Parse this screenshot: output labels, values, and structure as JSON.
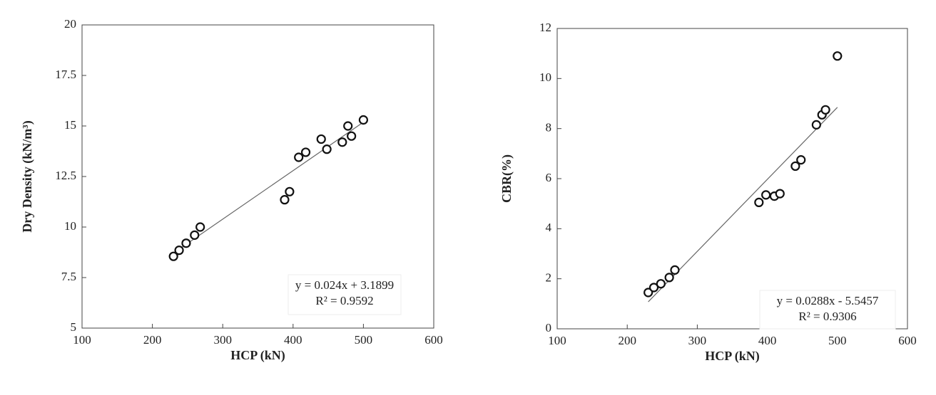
{
  "chart_data": [
    {
      "type": "scatter",
      "x_label": "HCP (kN)",
      "y_label": "Dry Density (kN/m³)",
      "x": [
        230,
        238,
        248,
        260,
        268,
        388,
        395,
        408,
        418,
        440,
        448,
        470,
        478,
        483,
        500
      ],
      "values": [
        8.55,
        8.85,
        9.2,
        9.6,
        10.0,
        11.35,
        11.75,
        13.45,
        13.7,
        14.35,
        13.85,
        14.2,
        15.0,
        14.5,
        15.3
      ],
      "trendline": {
        "x": [
          230,
          500
        ],
        "values": [
          8.71,
          15.19
        ]
      },
      "annotations": [
        "y = 0.024x + 3.1899",
        "R² = 0.9592"
      ],
      "xlim": [
        100,
        600
      ],
      "xticks": [
        100,
        200,
        300,
        400,
        500,
        600
      ],
      "ylim": [
        5,
        20
      ],
      "yticks": [
        5,
        7.5,
        10,
        12.5,
        15,
        17.5,
        20
      ]
    },
    {
      "type": "scatter",
      "x_label": "HCP (kN)",
      "y_label": "CBR(%)",
      "x": [
        230,
        238,
        248,
        260,
        268,
        388,
        398,
        410,
        418,
        440,
        448,
        470,
        478,
        483,
        500
      ],
      "values": [
        1.45,
        1.65,
        1.8,
        2.05,
        2.35,
        5.05,
        5.35,
        5.3,
        5.4,
        6.5,
        6.75,
        8.15,
        8.55,
        8.75,
        10.9
      ],
      "trendline": {
        "x": [
          230,
          500
        ],
        "values": [
          1.08,
          8.85
        ]
      },
      "annotations": [
        "y = 0.0288x - 5.5457",
        "R² = 0.9306"
      ],
      "xlim": [
        100,
        600
      ],
      "xticks": [
        100,
        200,
        300,
        400,
        500,
        600
      ],
      "ylim": [
        0,
        12
      ],
      "yticks": [
        0,
        2,
        4,
        6,
        8,
        10,
        12
      ]
    }
  ]
}
